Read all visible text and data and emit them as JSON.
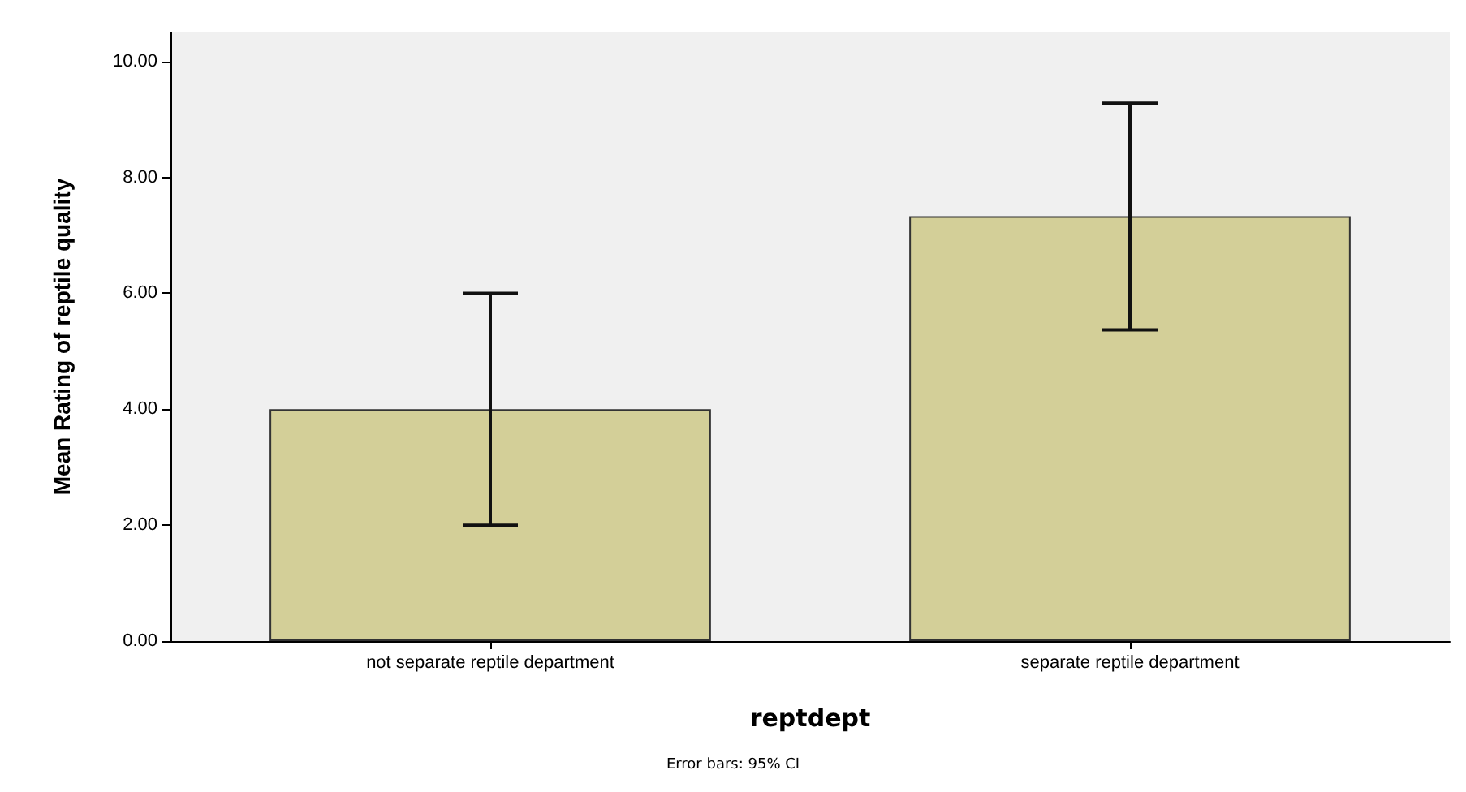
{
  "chart_data": {
    "type": "bar",
    "categories": [
      "not separate reptile department",
      "separate reptile department"
    ],
    "values": [
      4.0,
      7.33
    ],
    "errors": [
      [
        2.0,
        6.0
      ],
      [
        5.37,
        9.28
      ]
    ],
    "color": "#d3cf98",
    "xlabel": "reptdept",
    "ylabel": "Mean Rating of reptile quality",
    "ylim": [
      0,
      10.5
    ],
    "yticks": [
      {
        "value": 0,
        "label": "0.00"
      },
      {
        "value": 2,
        "label": "2.00"
      },
      {
        "value": 4,
        "label": "4.00"
      },
      {
        "value": 6,
        "label": "6.00"
      },
      {
        "value": 8,
        "label": "8.00"
      },
      {
        "value": 10,
        "label": "10.00"
      }
    ],
    "grid": false,
    "annotations": [
      "Error bars: 95% CI"
    ]
  }
}
